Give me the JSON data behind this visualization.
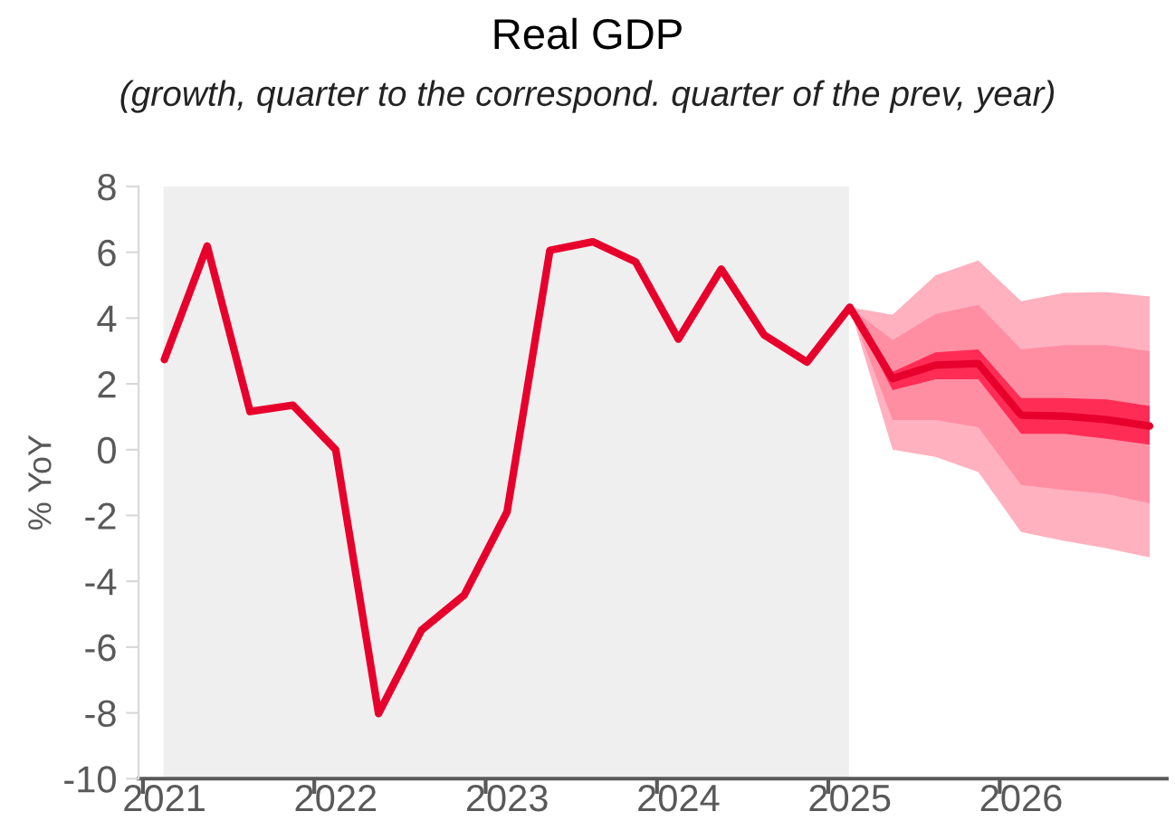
{
  "chart_data": {
    "type": "line",
    "title": "Real GDP",
    "subtitle": "(growth, quarter to the correspond. quarter of the prev, year)",
    "ylabel": "% YoY",
    "categories": [
      "2021",
      null,
      null,
      null,
      "2022",
      null,
      null,
      null,
      "2023",
      null,
      null,
      null,
      "2024",
      null,
      null,
      null,
      "2025",
      null,
      null,
      null,
      "2026",
      null,
      null,
      null
    ],
    "series": [
      {
        "color": "#ffb1bf",
        "values": [
          null,
          null,
          null,
          null,
          null,
          null,
          null,
          null,
          null,
          null,
          null,
          null,
          null,
          null,
          null,
          null,
          null,
          null,
          null,
          null,
          null,
          null,
          null,
          null
        ],
        "lower": [
          null,
          null,
          null,
          null,
          null,
          null,
          null,
          null,
          null,
          null,
          null,
          null,
          null,
          null,
          null,
          null,
          4.33,
          0,
          -0.22,
          -0.68,
          -2.5,
          -2.77,
          -3.0,
          -3.27
        ],
        "upper": [
          null,
          null,
          null,
          null,
          null,
          null,
          null,
          null,
          null,
          null,
          null,
          null,
          null,
          null,
          null,
          null,
          4.33,
          4.1,
          5.3,
          5.75,
          4.51,
          4.77,
          4.79,
          4.66
        ]
      },
      {
        "color": "#ff8ea3",
        "values": [
          null,
          null,
          null,
          null,
          null,
          null,
          null,
          null,
          null,
          null,
          null,
          null,
          null,
          null,
          null,
          null,
          null,
          null,
          null,
          null,
          null,
          null,
          null,
          null
        ],
        "lower": [
          null,
          null,
          null,
          null,
          null,
          null,
          null,
          null,
          null,
          null,
          null,
          null,
          null,
          null,
          null,
          null,
          4.33,
          0.9,
          0.9,
          0.68,
          -1.07,
          -1.22,
          -1.35,
          -1.63
        ],
        "upper": [
          null,
          null,
          null,
          null,
          null,
          null,
          null,
          null,
          null,
          null,
          null,
          null,
          null,
          null,
          null,
          null,
          4.33,
          3.33,
          4.12,
          4.4,
          3.05,
          3.18,
          3.18,
          2.99
        ]
      },
      {
        "color": "#ff2d55",
        "values": [
          null,
          null,
          null,
          null,
          null,
          null,
          null,
          null,
          null,
          null,
          null,
          null,
          null,
          null,
          null,
          null,
          null,
          null,
          null,
          null,
          null,
          null,
          null,
          null
        ],
        "lower": [
          null,
          null,
          null,
          null,
          null,
          null,
          null,
          null,
          null,
          null,
          null,
          null,
          null,
          null,
          null,
          null,
          4.33,
          1.81,
          2.14,
          2.14,
          0.48,
          0.48,
          0.33,
          0.15
        ],
        "upper": [
          null,
          null,
          null,
          null,
          null,
          null,
          null,
          null,
          null,
          null,
          null,
          null,
          null,
          null,
          null,
          null,
          4.33,
          2.37,
          2.96,
          3.05,
          1.57,
          1.57,
          1.53,
          1.33
        ]
      },
      {
        "color": "#e8002d",
        "values": [
          2.74,
          6.19,
          1.16,
          1.35,
          0,
          -8.02,
          -5.49,
          -4.42,
          -1.89,
          6.06,
          6.32,
          5.71,
          3.36,
          5.49,
          3.49,
          2.66,
          4.33,
          2.16,
          2.57,
          2.62,
          1.05,
          1.02,
          0.91,
          0.72
        ]
      }
    ],
    "ylim": [
      -10,
      8
    ],
    "yticks": [
      -10,
      -8,
      -6,
      -4,
      -2,
      0,
      2,
      4,
      6,
      8
    ],
    "bands": [
      {
        "axis": "x",
        "from": "2021",
        "to": "2025",
        "color": "#efefef"
      }
    ],
    "grid": false,
    "legend": false
  }
}
